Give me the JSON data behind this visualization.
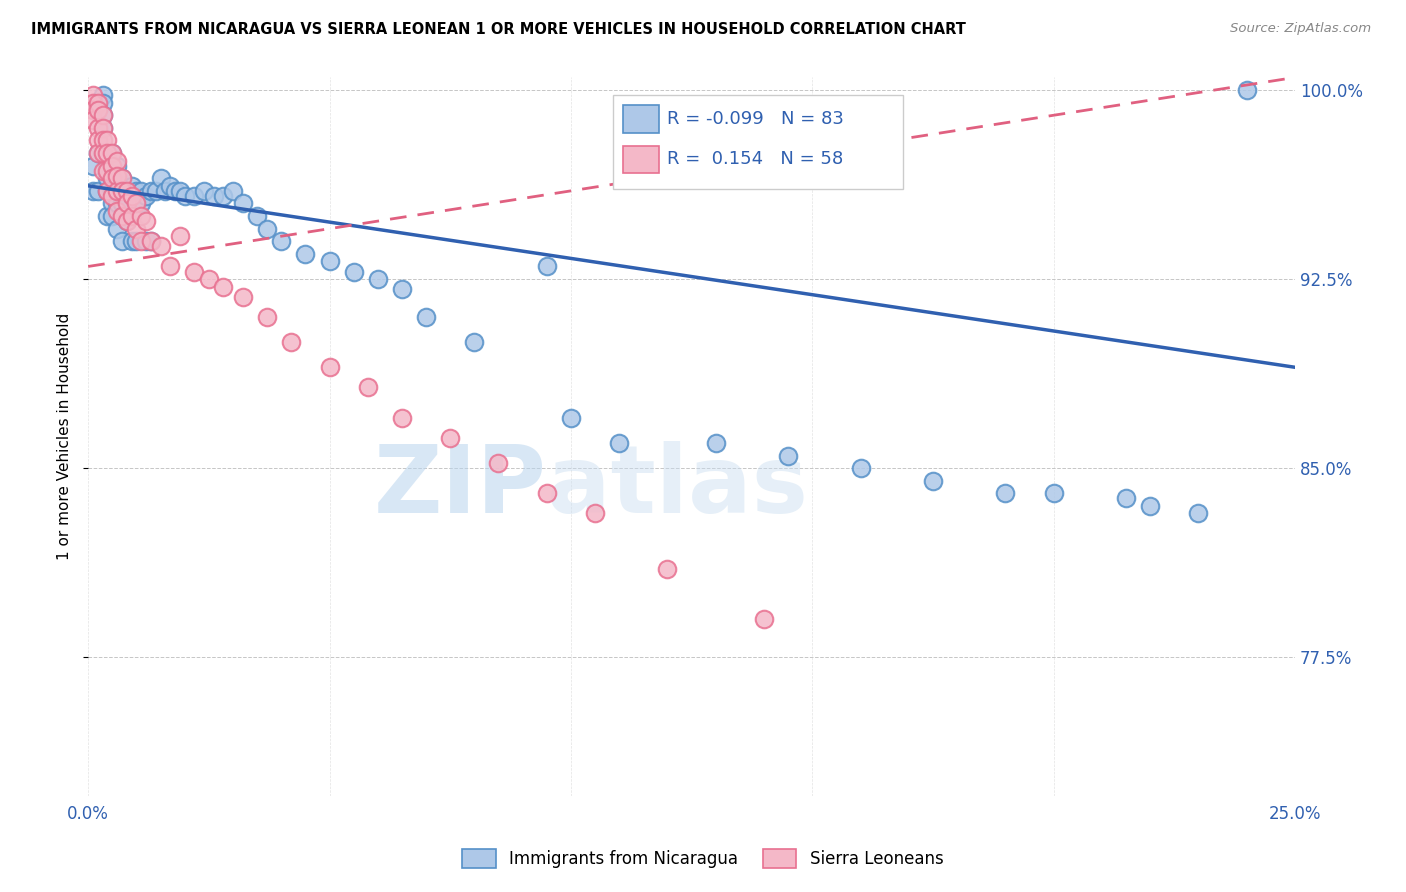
{
  "title": "IMMIGRANTS FROM NICARAGUA VS SIERRA LEONEAN 1 OR MORE VEHICLES IN HOUSEHOLD CORRELATION CHART",
  "source": "Source: ZipAtlas.com",
  "ylabel": "1 or more Vehicles in Household",
  "xlim": [
    0.0,
    0.25
  ],
  "ylim": [
    0.72,
    1.005
  ],
  "legend_blue_label": "Immigrants from Nicaragua",
  "legend_pink_label": "Sierra Leoneans",
  "R_blue": -0.099,
  "N_blue": 83,
  "R_pink": 0.154,
  "N_pink": 58,
  "blue_color": "#aec8e8",
  "pink_color": "#f4b8c8",
  "blue_edge_color": "#5590c8",
  "pink_edge_color": "#e87090",
  "blue_line_color": "#3060b0",
  "pink_line_color": "#e06080",
  "watermark_zip": "ZIP",
  "watermark_atlas": "atlas",
  "blue_x": [
    0.001,
    0.001,
    0.002,
    0.002,
    0.002,
    0.003,
    0.003,
    0.003,
    0.003,
    0.003,
    0.004,
    0.004,
    0.004,
    0.004,
    0.004,
    0.005,
    0.005,
    0.005,
    0.005,
    0.005,
    0.005,
    0.006,
    0.006,
    0.006,
    0.006,
    0.006,
    0.007,
    0.007,
    0.007,
    0.007,
    0.007,
    0.008,
    0.008,
    0.008,
    0.008,
    0.009,
    0.009,
    0.009,
    0.01,
    0.01,
    0.01,
    0.011,
    0.011,
    0.012,
    0.012,
    0.013,
    0.013,
    0.014,
    0.015,
    0.016,
    0.017,
    0.018,
    0.019,
    0.02,
    0.022,
    0.024,
    0.026,
    0.028,
    0.03,
    0.032,
    0.035,
    0.037,
    0.04,
    0.045,
    0.05,
    0.055,
    0.06,
    0.065,
    0.07,
    0.08,
    0.095,
    0.1,
    0.11,
    0.13,
    0.145,
    0.16,
    0.175,
    0.19,
    0.2,
    0.215,
    0.22,
    0.23,
    0.24
  ],
  "blue_y": [
    0.97,
    0.96,
    0.995,
    0.975,
    0.96,
    0.998,
    0.995,
    0.99,
    0.985,
    0.975,
    0.975,
    0.97,
    0.965,
    0.96,
    0.95,
    0.975,
    0.97,
    0.965,
    0.96,
    0.955,
    0.95,
    0.97,
    0.965,
    0.96,
    0.955,
    0.945,
    0.965,
    0.96,
    0.955,
    0.95,
    0.94,
    0.96,
    0.958,
    0.955,
    0.948,
    0.962,
    0.958,
    0.94,
    0.96,
    0.955,
    0.94,
    0.96,
    0.955,
    0.958,
    0.94,
    0.96,
    0.94,
    0.96,
    0.965,
    0.96,
    0.962,
    0.96,
    0.96,
    0.958,
    0.958,
    0.96,
    0.958,
    0.958,
    0.96,
    0.955,
    0.95,
    0.945,
    0.94,
    0.935,
    0.932,
    0.928,
    0.925,
    0.921,
    0.91,
    0.9,
    0.93,
    0.87,
    0.86,
    0.86,
    0.855,
    0.85,
    0.845,
    0.84,
    0.84,
    0.838,
    0.835,
    0.832,
    1.0
  ],
  "pink_x": [
    0.001,
    0.001,
    0.001,
    0.001,
    0.002,
    0.002,
    0.002,
    0.002,
    0.002,
    0.003,
    0.003,
    0.003,
    0.003,
    0.003,
    0.004,
    0.004,
    0.004,
    0.004,
    0.005,
    0.005,
    0.005,
    0.005,
    0.006,
    0.006,
    0.006,
    0.006,
    0.007,
    0.007,
    0.007,
    0.008,
    0.008,
    0.008,
    0.009,
    0.009,
    0.01,
    0.01,
    0.011,
    0.011,
    0.012,
    0.013,
    0.015,
    0.017,
    0.019,
    0.022,
    0.025,
    0.028,
    0.032,
    0.037,
    0.042,
    0.05,
    0.058,
    0.065,
    0.075,
    0.085,
    0.095,
    0.105,
    0.12,
    0.14
  ],
  "pink_y": [
    0.998,
    0.995,
    0.992,
    0.988,
    0.995,
    0.992,
    0.985,
    0.98,
    0.975,
    0.99,
    0.985,
    0.98,
    0.975,
    0.968,
    0.98,
    0.975,
    0.968,
    0.96,
    0.975,
    0.97,
    0.965,
    0.958,
    0.972,
    0.966,
    0.96,
    0.952,
    0.965,
    0.96,
    0.95,
    0.96,
    0.955,
    0.948,
    0.958,
    0.95,
    0.955,
    0.945,
    0.95,
    0.94,
    0.948,
    0.94,
    0.938,
    0.93,
    0.942,
    0.928,
    0.925,
    0.922,
    0.918,
    0.91,
    0.9,
    0.89,
    0.882,
    0.87,
    0.862,
    0.852,
    0.84,
    0.832,
    0.81,
    0.79
  ],
  "blue_line_y0": 0.962,
  "blue_line_y1": 0.89,
  "pink_line_y0": 0.93,
  "pink_line_y1": 1.005
}
